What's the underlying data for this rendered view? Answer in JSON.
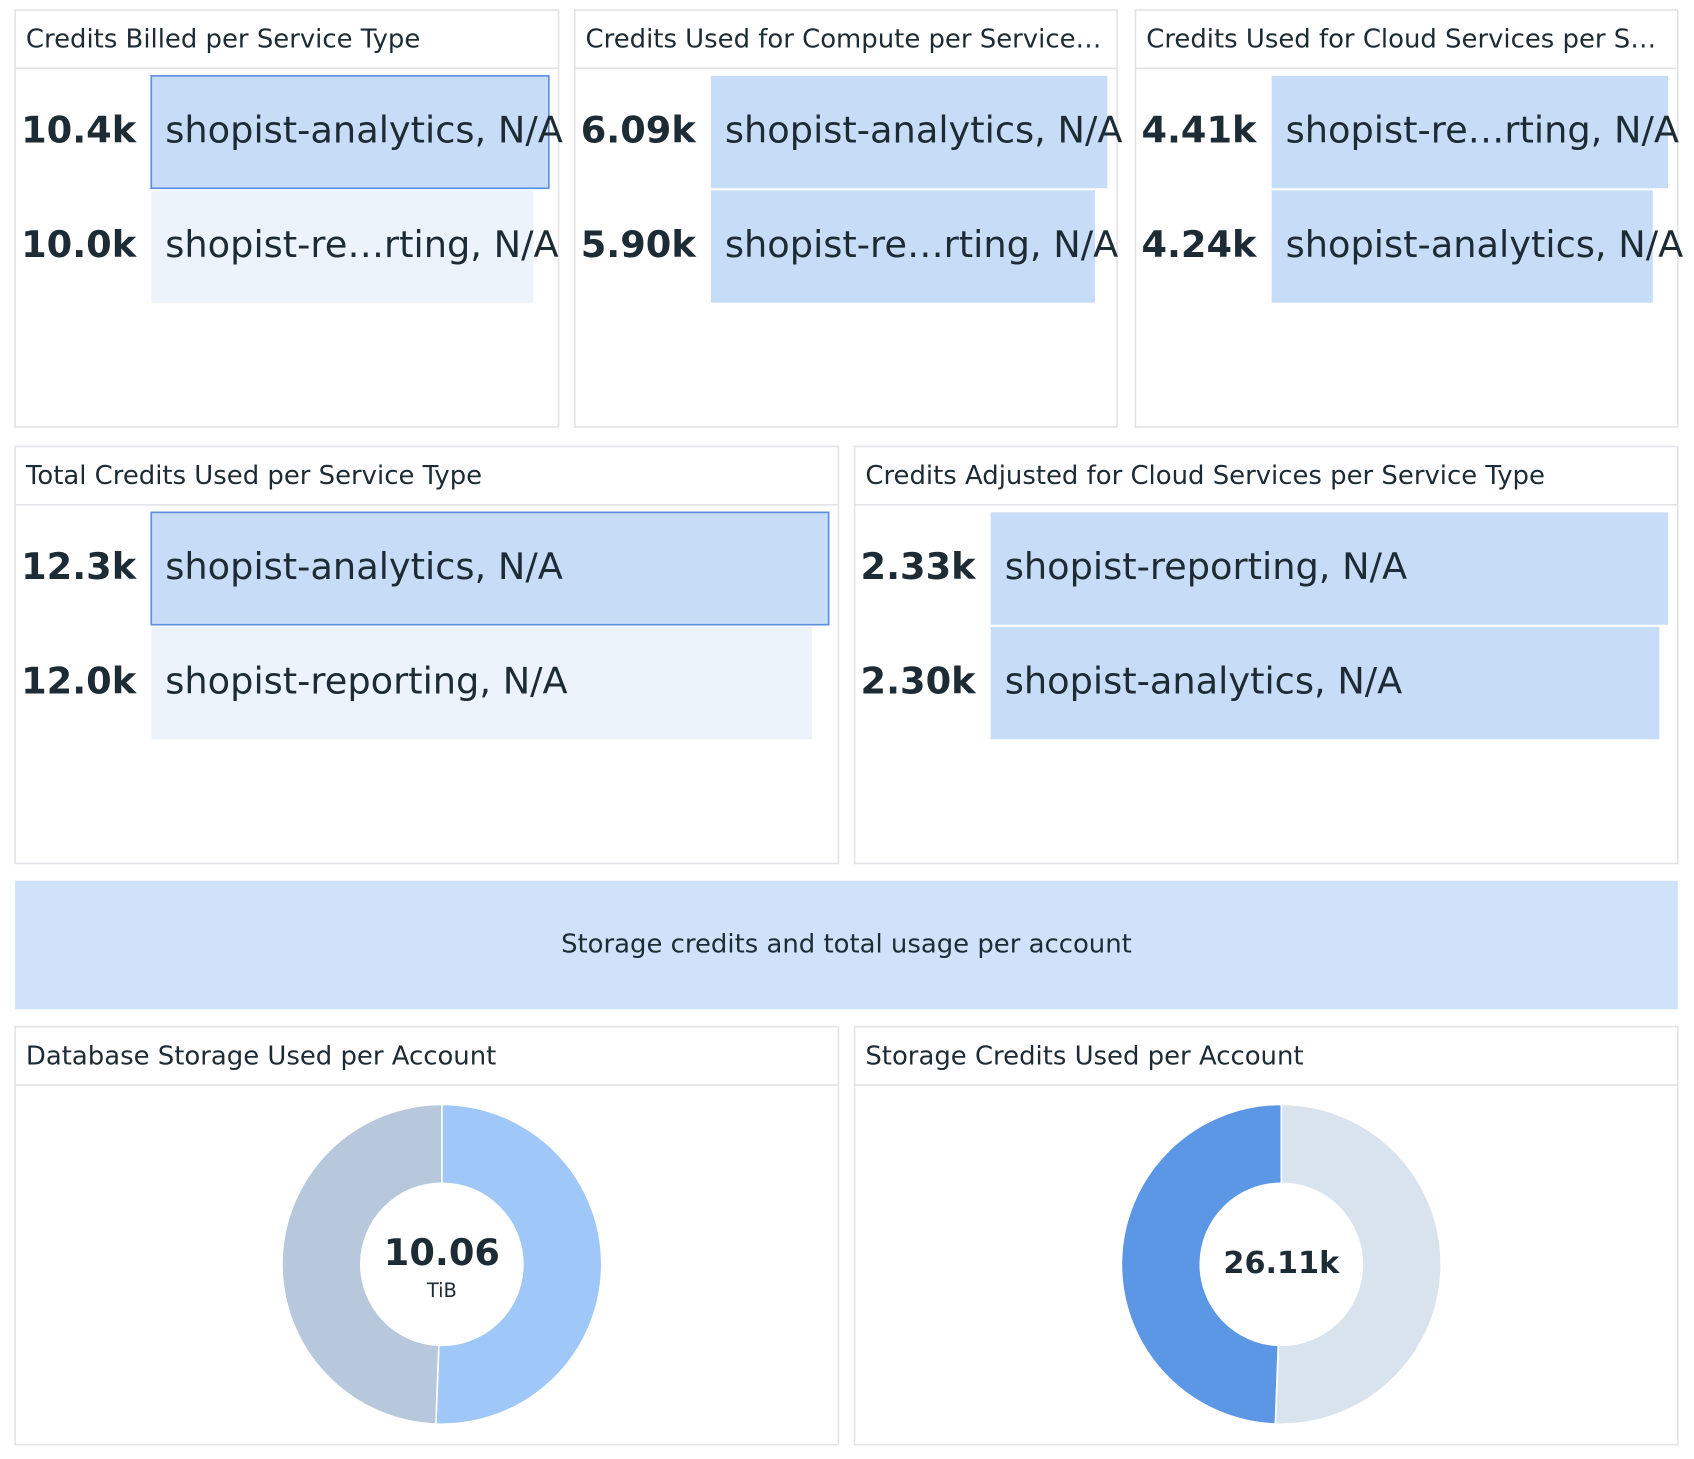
{
  "widgets": [
    {
      "type": "toplist",
      "title": "Credits Billed per Service Type",
      "labels": [
        "shopist-analytics, N/A",
        "shopist-re…rting, N/A"
      ],
      "values": [
        10400,
        10000
      ],
      "value_labels": [
        "10.4k",
        "10.0k"
      ],
      "colors": [
        "#c7dcf7",
        "#edf3fb"
      ],
      "highlighted": 0
    },
    {
      "type": "toplist",
      "title": "Credits Used for Compute per Service…",
      "labels": [
        "shopist-analytics, N/A",
        "shopist-re…rting, N/A"
      ],
      "values": [
        6090,
        5900
      ],
      "value_labels": [
        "6.09k",
        "5.90k"
      ],
      "colors": [
        "#c7dcf7",
        "#c7dcf7"
      ]
    },
    {
      "type": "toplist",
      "title": "Credits Used for Cloud Services per S…",
      "labels": [
        "shopist-re…rting, N/A",
        "shopist-analytics, N/A"
      ],
      "values": [
        4410,
        4240
      ],
      "value_labels": [
        "4.41k",
        "4.24k"
      ],
      "colors": [
        "#c7dcf7",
        "#c7dcf7"
      ]
    },
    {
      "type": "toplist",
      "title": "Total Credits Used per Service Type",
      "labels": [
        "shopist-analytics, N/A",
        "shopist-reporting, N/A"
      ],
      "values": [
        12300,
        12000
      ],
      "value_labels": [
        "12.3k",
        "12.0k"
      ],
      "colors": [
        "#c7dcf7",
        "#edf3fb"
      ],
      "highlighted": 0
    },
    {
      "type": "toplist",
      "title": "Credits Adjusted for Cloud Services per Service Type",
      "labels": [
        "shopist-reporting, N/A",
        "shopist-analytics, N/A"
      ],
      "values": [
        2330,
        2300
      ],
      "value_labels": [
        "2.33k",
        "2.30k"
      ],
      "colors": [
        "#c7dcf7",
        "#c7dcf7"
      ]
    },
    {
      "type": "note",
      "text": "Storage credits and total usage per account"
    },
    {
      "type": "donut",
      "title": "Database Storage Used per Account",
      "values": [
        5.09,
        4.97
      ],
      "colors": [
        "#9fc8f8",
        "#b8c8dc"
      ],
      "total": 10.06,
      "unit": "TiB"
    },
    {
      "type": "donut",
      "title": "Storage Credits Used per Account",
      "values": [
        13210,
        12900
      ],
      "colors": [
        "#d9e3ee",
        "#5b97e5"
      ],
      "total": {
        "value": 26110,
        "label": "26.11k"
      }
    }
  ]
}
